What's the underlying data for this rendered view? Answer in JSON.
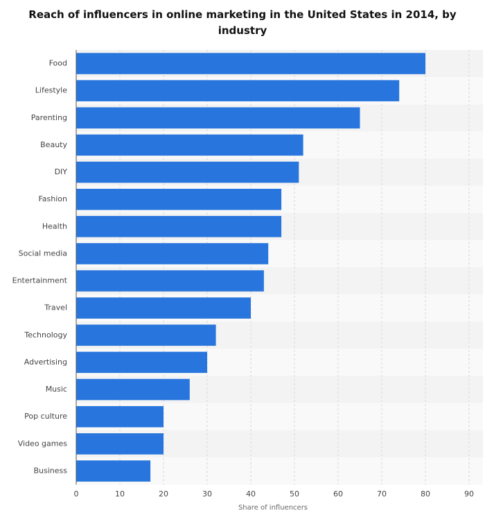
{
  "chart_data": {
    "type": "bar",
    "orientation": "horizontal",
    "title": "Reach of influencers in online marketing in the United States in 2014, by industry",
    "x_label": "Share of influencers",
    "categories": [
      "Food",
      "Lifestyle",
      "Parenting",
      "Beauty",
      "DIY",
      "Fashion",
      "Health",
      "Social media",
      "Entertainment",
      "Travel",
      "Technology",
      "Advertising",
      "Music",
      "Pop culture",
      "Video games",
      "Business"
    ],
    "values": [
      80,
      74,
      65,
      52,
      51,
      47,
      47,
      44,
      43,
      40,
      32,
      30,
      26,
      20,
      20,
      17
    ],
    "color": "#2876dd",
    "xlim": [
      0,
      90
    ],
    "xticks": [
      0,
      10,
      20,
      30,
      40,
      50,
      60,
      70,
      80,
      90
    ],
    "grid": true
  }
}
